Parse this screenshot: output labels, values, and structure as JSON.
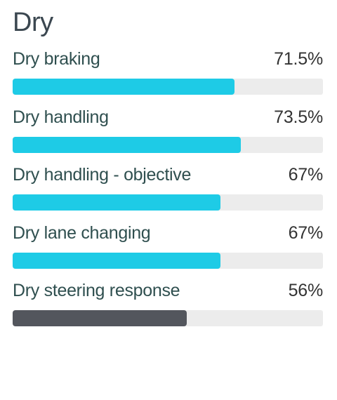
{
  "section": {
    "title": "Dry"
  },
  "metrics": [
    {
      "label": "Dry braking",
      "value": "71.5%",
      "fill": 0.715,
      "color": "#1ecbe6"
    },
    {
      "label": "Dry handling",
      "value": "73.5%",
      "fill": 0.735,
      "color": "#1ecbe6"
    },
    {
      "label": "Dry handling - objective",
      "value": "67%",
      "fill": 0.67,
      "color": "#1ecbe6"
    },
    {
      "label": "Dry lane changing",
      "value": "67%",
      "fill": 0.67,
      "color": "#1ecbe6"
    },
    {
      "label": "Dry steering response",
      "value": "56%",
      "fill": 0.56,
      "color": "#53565d"
    }
  ],
  "colors": {
    "track": "#ececec",
    "accent": "#1ecbe6",
    "low": "#53565d"
  }
}
